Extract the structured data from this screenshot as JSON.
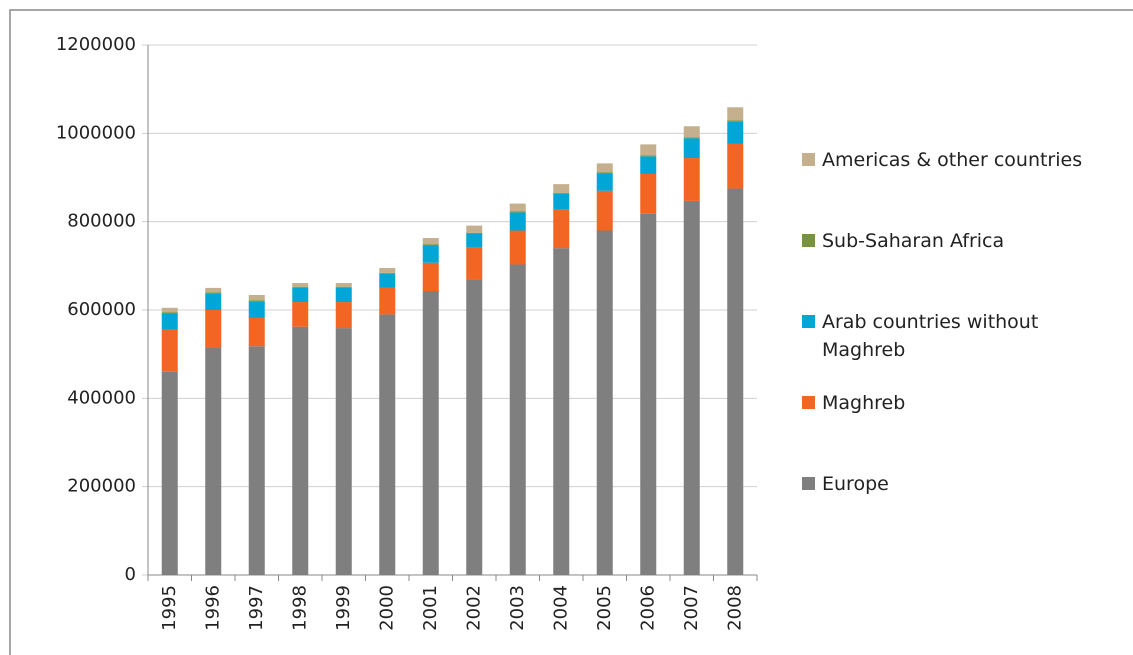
{
  "chart_data": {
    "type": "stacked_bar",
    "categories": [
      "1995",
      "1996",
      "1997",
      "1998",
      "1999",
      "2000",
      "2001",
      "2002",
      "2003",
      "2004",
      "2005",
      "2006",
      "2007",
      "2008"
    ],
    "series": [
      {
        "name": "Europe",
        "color": "#7f7f7f",
        "values": [
          460000,
          515000,
          518000,
          562000,
          559000,
          590000,
          643000,
          668000,
          703000,
          740000,
          780000,
          818000,
          847000,
          875000
        ]
      },
      {
        "name": "Maghreb",
        "color": "#f26522",
        "values": [
          97000,
          85000,
          64000,
          56000,
          59000,
          60000,
          64000,
          73000,
          77000,
          87000,
          90000,
          90000,
          97000,
          101000
        ]
      },
      {
        "name": "Arab countries without Maghreb",
        "color": "#00a6d6",
        "values": [
          36000,
          38000,
          38000,
          32000,
          32000,
          32000,
          40000,
          32000,
          41000,
          36000,
          40000,
          40000,
          45000,
          50000
        ]
      },
      {
        "name": "Sub-Saharan Africa",
        "color": "#77933c",
        "values": [
          2000,
          2000,
          2000,
          2000,
          2000,
          2000,
          2000,
          2000,
          2000,
          2000,
          2000,
          2000,
          2000,
          3000
        ]
      },
      {
        "name": "Americas & other countries",
        "color": "#c4b08f",
        "values": [
          10000,
          10000,
          12000,
          9000,
          9000,
          11000,
          14000,
          16000,
          18000,
          20000,
          20000,
          25000,
          25000,
          30000
        ]
      }
    ],
    "ylim": [
      0,
      1200000
    ],
    "yticks": [
      0,
      200000,
      400000,
      600000,
      800000,
      1000000,
      1200000
    ],
    "grid": true,
    "legend": "right"
  }
}
